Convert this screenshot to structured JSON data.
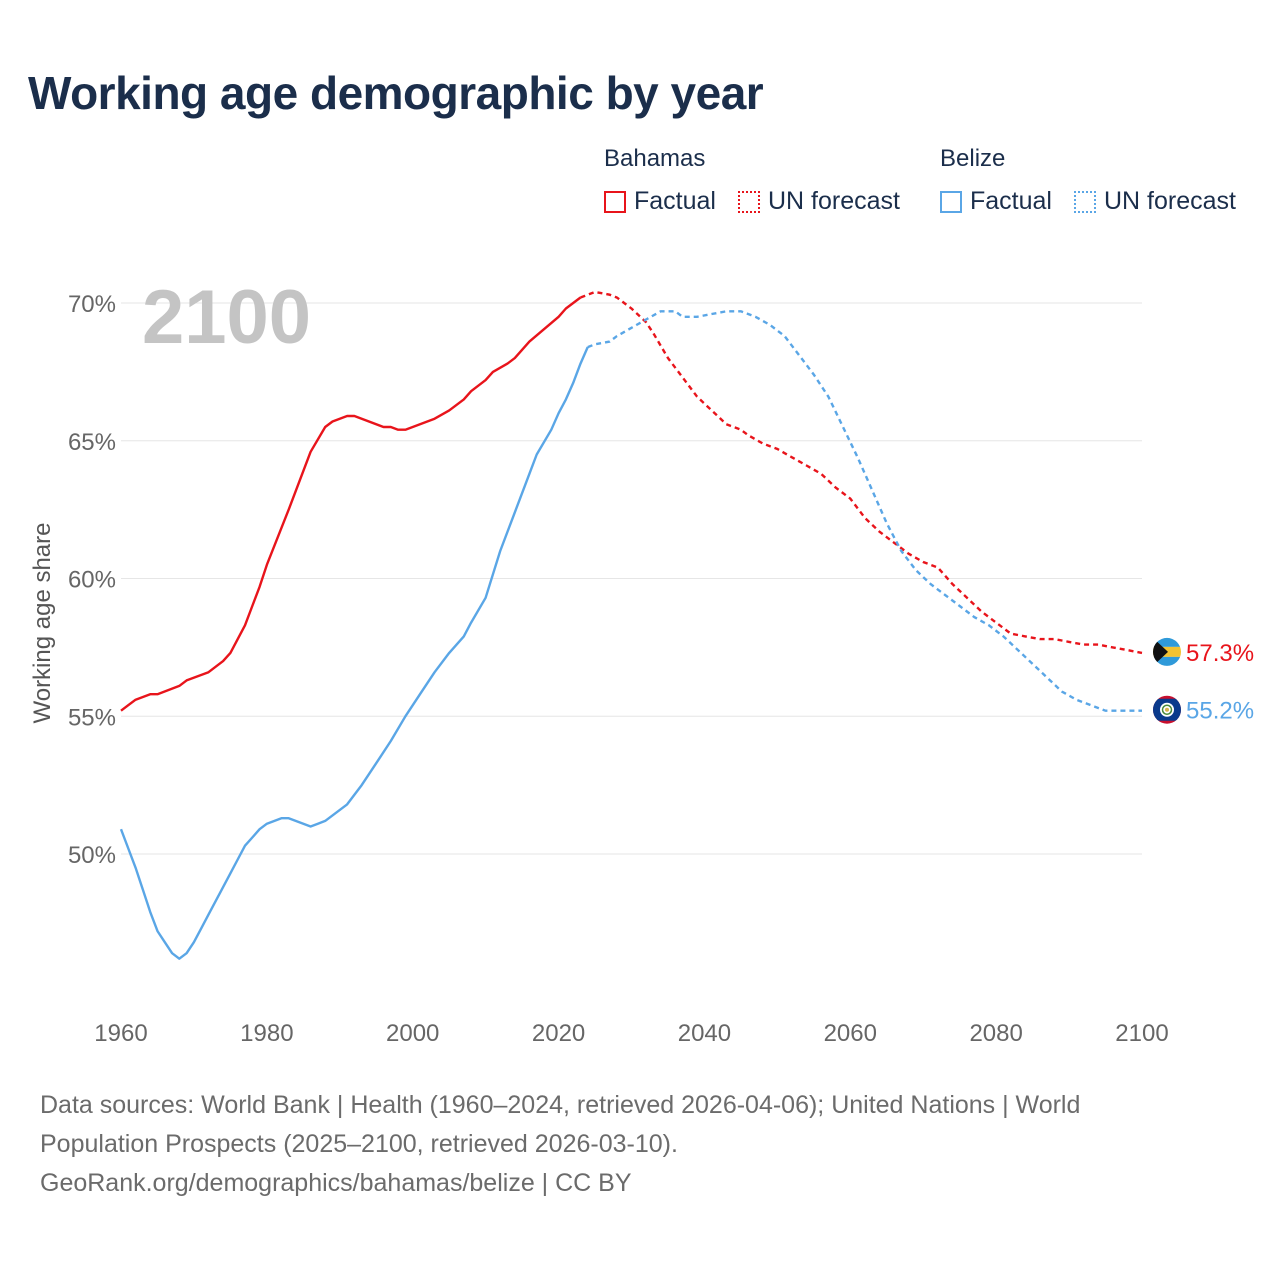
{
  "title": "Working age demographic by year",
  "legend": {
    "groups": [
      {
        "name": "Bahamas",
        "color": "#e8141b",
        "items": [
          {
            "label": "Factual",
            "style": "solid"
          },
          {
            "label": "UN forecast",
            "style": "dotted"
          }
        ]
      },
      {
        "name": "Belize",
        "color": "#5aa6e6",
        "items": [
          {
            "label": "Factual",
            "style": "solid"
          },
          {
            "label": "UN forecast",
            "style": "dotted"
          }
        ]
      }
    ]
  },
  "source": {
    "line1": "Data sources: World Bank | Health (1960–2024, retrieved 2026-04-06); United Nations | World",
    "line2": "Population Prospects (2025–2100, retrieved 2026-03-10).",
    "line3": "GeoRank.org/demographics/bahamas/belize | CC BY"
  },
  "chart_data": {
    "type": "line",
    "ylabel": "Working age share",
    "xlabel": "",
    "year_watermark": "2100",
    "xlim": [
      1960,
      2100
    ],
    "ylim": [
      46,
      71
    ],
    "x_ticks": [
      1960,
      1980,
      2000,
      2020,
      2040,
      2060,
      2080,
      2100
    ],
    "y_ticks": [
      50,
      55,
      60,
      65,
      70
    ],
    "y_tick_labels": [
      "50%",
      "55%",
      "60%",
      "65%",
      "70%"
    ],
    "grid": true,
    "factual_end_year": 2024,
    "series": [
      {
        "name": "Bahamas",
        "color": "#e8141b",
        "end_label": "57.3%",
        "x": [
          1960,
          1962,
          1964,
          1965,
          1968,
          1969,
          1972,
          1974,
          1975,
          1977,
          1978,
          1979,
          1980,
          1983,
          1984,
          1986,
          1988,
          1989,
          1991,
          1992,
          1996,
          1997,
          1998,
          1999,
          2000,
          2003,
          2005,
          2007,
          2008,
          2010,
          2011,
          2013,
          2014,
          2016,
          2020,
          2021,
          2023,
          2025,
          2027,
          2028,
          2030,
          2032,
          2033,
          2035,
          2037,
          2039,
          2041,
          2043,
          2045,
          2046,
          2048,
          2050,
          2052,
          2054,
          2056,
          2058,
          2060,
          2062,
          2064,
          2066,
          2068,
          2070,
          2072,
          2074,
          2076,
          2078,
          2080,
          2082,
          2084,
          2086,
          2088,
          2090,
          2092,
          2094,
          2096,
          2098,
          2100
        ],
        "y": [
          55.2,
          55.6,
          55.8,
          55.8,
          56.1,
          56.3,
          56.6,
          57.0,
          57.3,
          58.3,
          59.0,
          59.7,
          60.5,
          62.5,
          63.2,
          64.6,
          65.5,
          65.7,
          65.9,
          65.9,
          65.5,
          65.5,
          65.4,
          65.4,
          65.5,
          65.8,
          66.1,
          66.5,
          66.8,
          67.2,
          67.5,
          67.8,
          68.0,
          68.6,
          69.5,
          69.8,
          70.2,
          70.4,
          70.3,
          70.2,
          69.8,
          69.3,
          68.9,
          68.0,
          67.3,
          66.6,
          66.1,
          65.6,
          65.4,
          65.2,
          64.9,
          64.7,
          64.4,
          64.1,
          63.8,
          63.3,
          62.9,
          62.2,
          61.7,
          61.3,
          60.9,
          60.6,
          60.4,
          59.8,
          59.3,
          58.8,
          58.4,
          58.0,
          57.9,
          57.8,
          57.8,
          57.7,
          57.6,
          57.6,
          57.5,
          57.4,
          57.3
        ]
      },
      {
        "name": "Belize",
        "color": "#5aa6e6",
        "end_label": "55.2%",
        "x": [
          1960,
          1961,
          1962,
          1963,
          1964,
          1965,
          1966,
          1967,
          1968,
          1969,
          1970,
          1971,
          1972,
          1973,
          1974,
          1975,
          1976,
          1977,
          1978,
          1979,
          1980,
          1982,
          1983,
          1986,
          1987,
          1988,
          1990,
          1991,
          1993,
          1995,
          1997,
          1999,
          2001,
          2003,
          2005,
          2007,
          2008,
          2010,
          2012,
          2014,
          2016,
          2017,
          2019,
          2020,
          2021,
          2022,
          2023,
          2024,
          2025,
          2027,
          2028,
          2030,
          2032,
          2034,
          2035,
          2036,
          2037,
          2039,
          2041,
          2043,
          2045,
          2047,
          2049,
          2051,
          2053,
          2055,
          2057,
          2059,
          2061,
          2063,
          2065,
          2067,
          2069,
          2071,
          2073,
          2075,
          2077,
          2079,
          2081,
          2083,
          2085,
          2087,
          2089,
          2091,
          2093,
          2095,
          2097,
          2099,
          2100
        ],
        "y": [
          50.9,
          50.2,
          49.5,
          48.7,
          47.9,
          47.2,
          46.8,
          46.4,
          46.2,
          46.4,
          46.8,
          47.3,
          47.8,
          48.3,
          48.8,
          49.3,
          49.8,
          50.3,
          50.6,
          50.9,
          51.1,
          51.3,
          51.3,
          51.0,
          51.1,
          51.2,
          51.6,
          51.8,
          52.5,
          53.3,
          54.1,
          55.0,
          55.8,
          56.6,
          57.3,
          57.9,
          58.4,
          59.3,
          61.0,
          62.4,
          63.8,
          64.5,
          65.4,
          66.0,
          66.5,
          67.1,
          67.8,
          68.4,
          68.5,
          68.6,
          68.8,
          69.1,
          69.4,
          69.7,
          69.7,
          69.7,
          69.5,
          69.5,
          69.6,
          69.7,
          69.7,
          69.5,
          69.2,
          68.8,
          68.1,
          67.4,
          66.6,
          65.5,
          64.4,
          63.2,
          62.0,
          61.0,
          60.3,
          59.8,
          59.4,
          59.0,
          58.6,
          58.3,
          57.9,
          57.4,
          56.9,
          56.4,
          55.9,
          55.6,
          55.4,
          55.2,
          55.2,
          55.2,
          55.2
        ]
      }
    ]
  }
}
